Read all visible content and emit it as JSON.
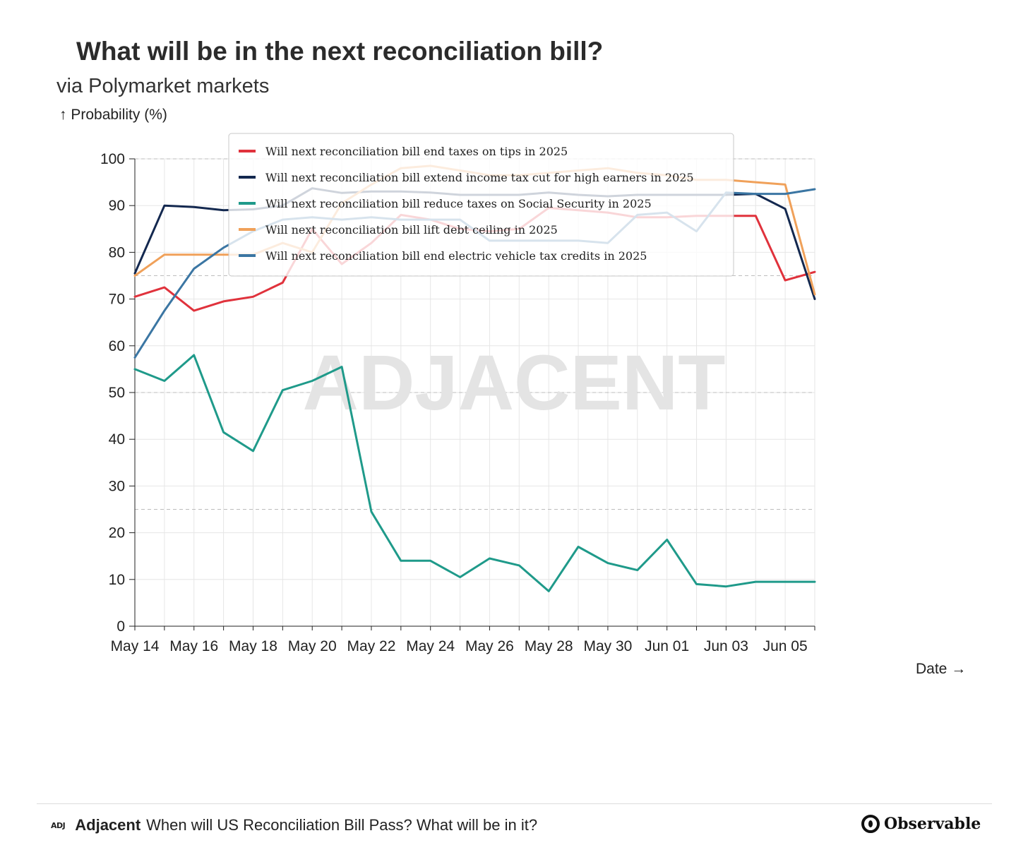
{
  "header": {
    "title": "What will be in the next reconciliation bill?",
    "subtitle": "via Polymarket markets"
  },
  "watermark": "ADJACENT",
  "footer": {
    "logo": "ADJ",
    "brand": "Adjacent",
    "text": "When will US Reconciliation Bill Pass? What will be in it?",
    "platform": "Observable"
  },
  "chart_data": {
    "type": "line",
    "title": "What will be in the next reconciliation bill?",
    "subtitle": "via Polymarket markets",
    "ylabel": "↑ Probability (%)",
    "xlabel": "Date →",
    "ylim": [
      0,
      100
    ],
    "yticks": [
      0,
      10,
      20,
      30,
      40,
      50,
      60,
      70,
      80,
      90,
      100
    ],
    "xticks": [
      "May 14",
      "May 16",
      "May 18",
      "May 20",
      "May 22",
      "May 24",
      "May 26",
      "May 28",
      "May 30",
      "Jun 01",
      "Jun 03",
      "Jun 05"
    ],
    "grid": true,
    "legend_position": "top-center",
    "x": [
      "May 14",
      "May 15",
      "May 16",
      "May 17",
      "May 18",
      "May 19",
      "May 20",
      "May 21",
      "May 22",
      "May 23",
      "May 24",
      "May 25",
      "May 26",
      "May 27",
      "May 28",
      "May 29",
      "May 30",
      "May 31",
      "Jun 01",
      "Jun 02",
      "Jun 03",
      "Jun 04",
      "Jun 05",
      "Jun 06"
    ],
    "series": [
      {
        "name": "Will next reconciliation bill end taxes on tips in 2025",
        "color": "#e0323c",
        "values": [
          70.5,
          72.5,
          67.5,
          69.5,
          70.5,
          73.5,
          85,
          77.5,
          82,
          88,
          87,
          85,
          84.5,
          85,
          89.5,
          89,
          88.5,
          87.5,
          87.5,
          87.8,
          87.8,
          87.8,
          74,
          75.8
        ]
      },
      {
        "name": "Will next reconciliation bill extend income tax cut for high earners in 2025",
        "color": "#13284f",
        "values": [
          75.5,
          90,
          89.7,
          89,
          89.2,
          90,
          93.7,
          92.7,
          93,
          93,
          92.8,
          92.3,
          92.3,
          92.3,
          92.8,
          92.3,
          92,
          92.3,
          92.3,
          92.3,
          92.3,
          92.5,
          89.3,
          70
        ]
      },
      {
        "name": "Will next reconciliation bill reduce taxes on Social Security in 2025",
        "color": "#1f9a8a",
        "values": [
          55,
          52.5,
          58,
          41.5,
          37.5,
          50.5,
          52.5,
          55.5,
          24.5,
          14,
          14,
          10.5,
          14.5,
          13,
          7.5,
          17,
          13.5,
          12,
          18.5,
          9,
          8.5,
          9.5,
          9.5,
          9.5
        ]
      },
      {
        "name": "Will next reconciliation bill lift debt ceiling in 2025",
        "color": "#f0a15a",
        "values": [
          75,
          79.5,
          79.5,
          79.5,
          79.5,
          82,
          80,
          90.5,
          94.5,
          98,
          98.5,
          97.5,
          96.5,
          96.5,
          97,
          97.5,
          98,
          97,
          96.5,
          95.5,
          95.5,
          95,
          94.5,
          71
        ]
      },
      {
        "name": "Will next reconciliation bill end electric vehicle tax credits in 2025",
        "color": "#3b76a3",
        "values": [
          57.5,
          67.5,
          76.5,
          81,
          84.5,
          87,
          87.5,
          87,
          87.5,
          87,
          87,
          87,
          82.5,
          82.5,
          82.5,
          82.5,
          82,
          88,
          88.5,
          84.5,
          92.8,
          92.5,
          92.5,
          93.5
        ]
      }
    ]
  }
}
